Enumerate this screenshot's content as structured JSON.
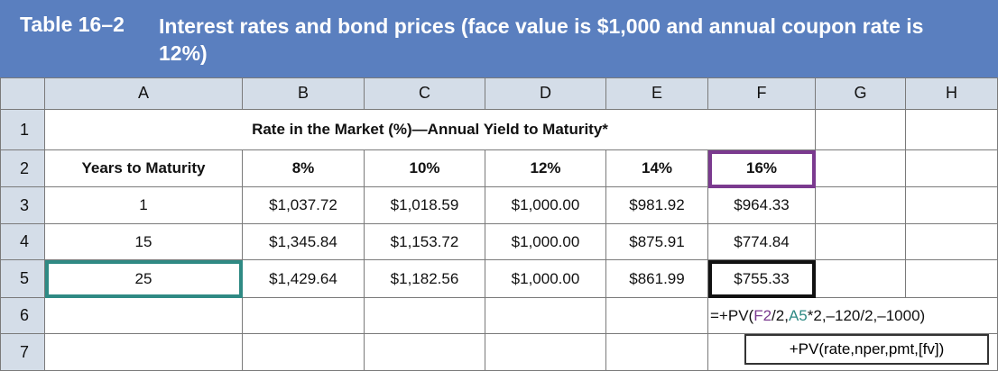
{
  "table": {
    "number": "Table 16–2",
    "title": "Interest rates and bond prices (face value is $1,000 and annual coupon rate is 12%)"
  },
  "columns": [
    "",
    "A",
    "B",
    "C",
    "D",
    "E",
    "F",
    "G",
    "H"
  ],
  "row_numbers": [
    "1",
    "2",
    "3",
    "4",
    "5",
    "6",
    "7"
  ],
  "row1": {
    "header": "Rate in the Market (%)—Annual Yield to Maturity*"
  },
  "row2": {
    "years": "Years to Maturity",
    "rates": [
      "8%",
      "10%",
      "12%",
      "14%",
      "16%"
    ]
  },
  "rows": [
    {
      "years": "1",
      "prices": [
        "$1,037.72",
        "$1,018.59",
        "$1,000.00",
        "$981.92",
        "$964.33"
      ]
    },
    {
      "years": "15",
      "prices": [
        "$1,345.84",
        "$1,153.72",
        "$1,000.00",
        "$875.91",
        "$774.84"
      ]
    },
    {
      "years": "25",
      "prices": [
        "$1,429.64",
        "$1,182.56",
        "$1,000.00",
        "$861.99",
        "$755.33"
      ]
    }
  ],
  "formula": {
    "prefix": "=+PV(",
    "ref_rate": "F2",
    "mid1": "/2,",
    "ref_nper": "A5",
    "suffix": "*2,–120/2,–1000)"
  },
  "syntax": "+PV(rate,nper,pmt,[fv])",
  "colors": {
    "header_bg": "#5a7fbf",
    "grid_header_bg": "#d4dde8",
    "highlight_rate": "#7b3a8f",
    "highlight_nper": "#2f8a84",
    "highlight_result": "#111111"
  }
}
